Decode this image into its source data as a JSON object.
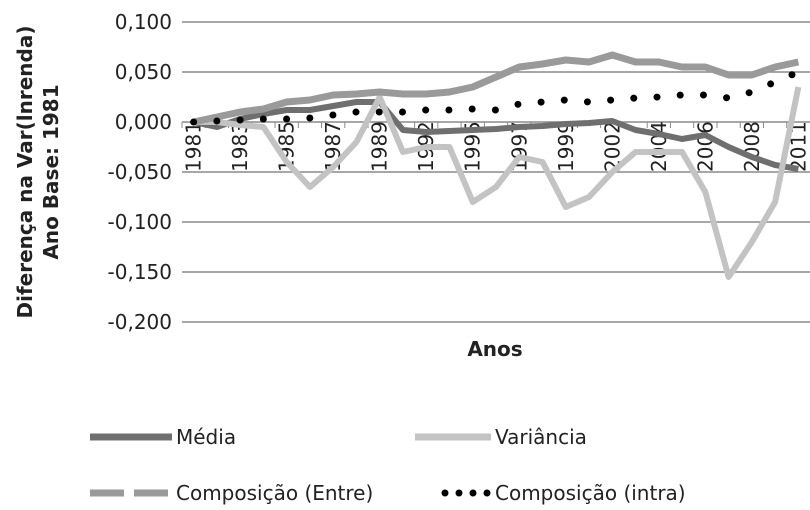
{
  "chart_data": {
    "type": "line",
    "y_label_lines": [
      "Diferença na Var(lnrenda)",
      "Ano Base: 1981"
    ],
    "x_label": "Anos",
    "categories": [
      "1981",
      null,
      "1983",
      null,
      "1985",
      null,
      "1987",
      null,
      "1989",
      null,
      "1992",
      null,
      "1995",
      null,
      "1997",
      null,
      "1999",
      null,
      "2002",
      null,
      "2004",
      null,
      "2006",
      null,
      "2008",
      null,
      "2011"
    ],
    "ylim": [
      -0.2,
      0.1
    ],
    "yticks": [
      {
        "value": -0.2,
        "label": "-0,200"
      },
      {
        "value": -0.15,
        "label": "-0,150"
      },
      {
        "value": -0.1,
        "label": "-0,100"
      },
      {
        "value": -0.05,
        "label": "-0,050"
      },
      {
        "value": 0,
        "label": "0,000"
      },
      {
        "value": 0.05,
        "label": "0,050"
      },
      {
        "value": 0.1,
        "label": "0,100"
      }
    ],
    "grid": true,
    "series": [
      {
        "name": "Média",
        "color": "#6f6f6f",
        "style": "solid",
        "values": [
          0,
          -0.005,
          0.003,
          0.008,
          0.012,
          0.012,
          0.016,
          0.02,
          0.02,
          -0.008,
          -0.01,
          -0.009,
          -0.008,
          -0.007,
          -0.005,
          -0.004,
          -0.002,
          -0.001,
          0.001,
          -0.008,
          -0.012,
          -0.017,
          -0.013,
          -0.025,
          -0.035,
          -0.043,
          -0.047
        ]
      },
      {
        "name": "Variância",
        "color": "#c3c3c3",
        "style": "solid",
        "values": [
          0,
          0,
          -0.003,
          -0.005,
          -0.04,
          -0.065,
          -0.045,
          -0.02,
          0.025,
          -0.03,
          -0.025,
          -0.025,
          -0.08,
          -0.065,
          -0.035,
          -0.04,
          -0.085,
          -0.075,
          -0.05,
          -0.03,
          -0.03,
          -0.03,
          -0.07,
          -0.155,
          -0.12,
          -0.08,
          0.035
        ]
      },
      {
        "name": "Composição (Entre)",
        "color": "#9a9a9a",
        "style": "dashed",
        "values": [
          0,
          0.005,
          0.01,
          0.013,
          0.02,
          0.022,
          0.027,
          0.028,
          0.03,
          0.028,
          0.028,
          0.03,
          0.035,
          0.045,
          0.055,
          0.058,
          0.062,
          0.06,
          0.067,
          0.06,
          0.06,
          0.055,
          0.055,
          0.047,
          0.047,
          0.055,
          0.06
        ]
      },
      {
        "name": "Composição (intra)",
        "color": "#000000",
        "style": "dotted",
        "values": [
          0,
          0.001,
          0.002,
          0.003,
          0.003,
          0.004,
          0.007,
          0.01,
          0.01,
          0.01,
          0.012,
          0.012,
          0.013,
          0.012,
          0.018,
          0.02,
          0.022,
          0.02,
          0.022,
          0.024,
          0.025,
          0.027,
          0.027,
          0.024,
          0.03,
          0.04,
          0.05
        ]
      }
    ]
  }
}
